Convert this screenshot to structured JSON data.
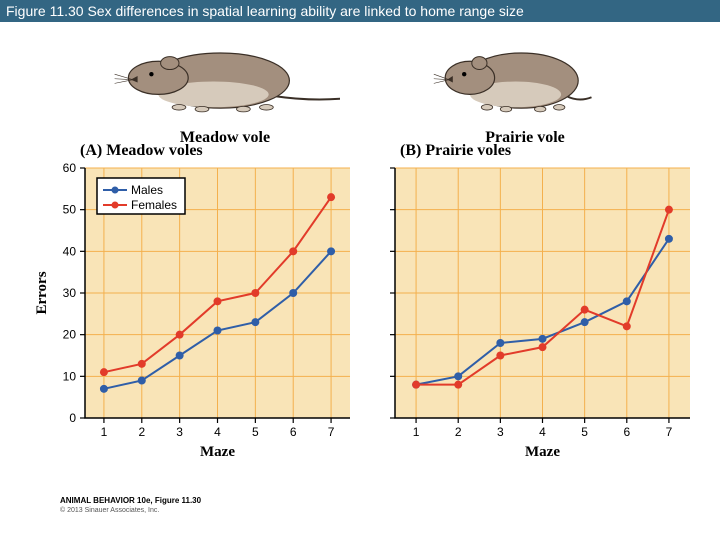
{
  "title_bar": "Figure 11.30  Sex differences in spatial learning ability are linked to home range size",
  "illustration_left_label": "Meadow vole",
  "illustration_right_label": "Prairie vole",
  "panel_a_title": "(A)  Meadow voles",
  "panel_b_title": "(B)  Prairie voles",
  "y_axis_label": "Errors",
  "x_axis_label": "Maze",
  "legend": {
    "males": "Males",
    "females": "Females",
    "male_color": "#2f5ea8",
    "female_color": "#e23b2a"
  },
  "colors": {
    "plot_bg": "#f9e4b7",
    "grid": "#f4b04d",
    "axis": "#000000",
    "title_bg": "#336683",
    "vole_body": "#a38f7e",
    "vole_belly": "#d6cabb",
    "vole_outline": "#3a2f26"
  },
  "axes": {
    "ylim": [
      0,
      60
    ],
    "ytick_step": 10,
    "x_categories": [
      1,
      2,
      3,
      4,
      5,
      6,
      7
    ]
  },
  "chart_a": {
    "type": "line",
    "males": [
      7,
      9,
      15,
      21,
      23,
      30,
      40
    ],
    "females": [
      11,
      13,
      20,
      28,
      30,
      40,
      53
    ]
  },
  "chart_b": {
    "type": "line",
    "males": [
      8,
      10,
      18,
      19,
      23,
      28,
      43
    ],
    "females": [
      8,
      8,
      15,
      17,
      26,
      22,
      50
    ]
  },
  "credit_line_1": "ANIMAL BEHAVIOR 10e, Figure 11.30",
  "credit_line_2": "© 2013 Sinauer Associates, Inc."
}
